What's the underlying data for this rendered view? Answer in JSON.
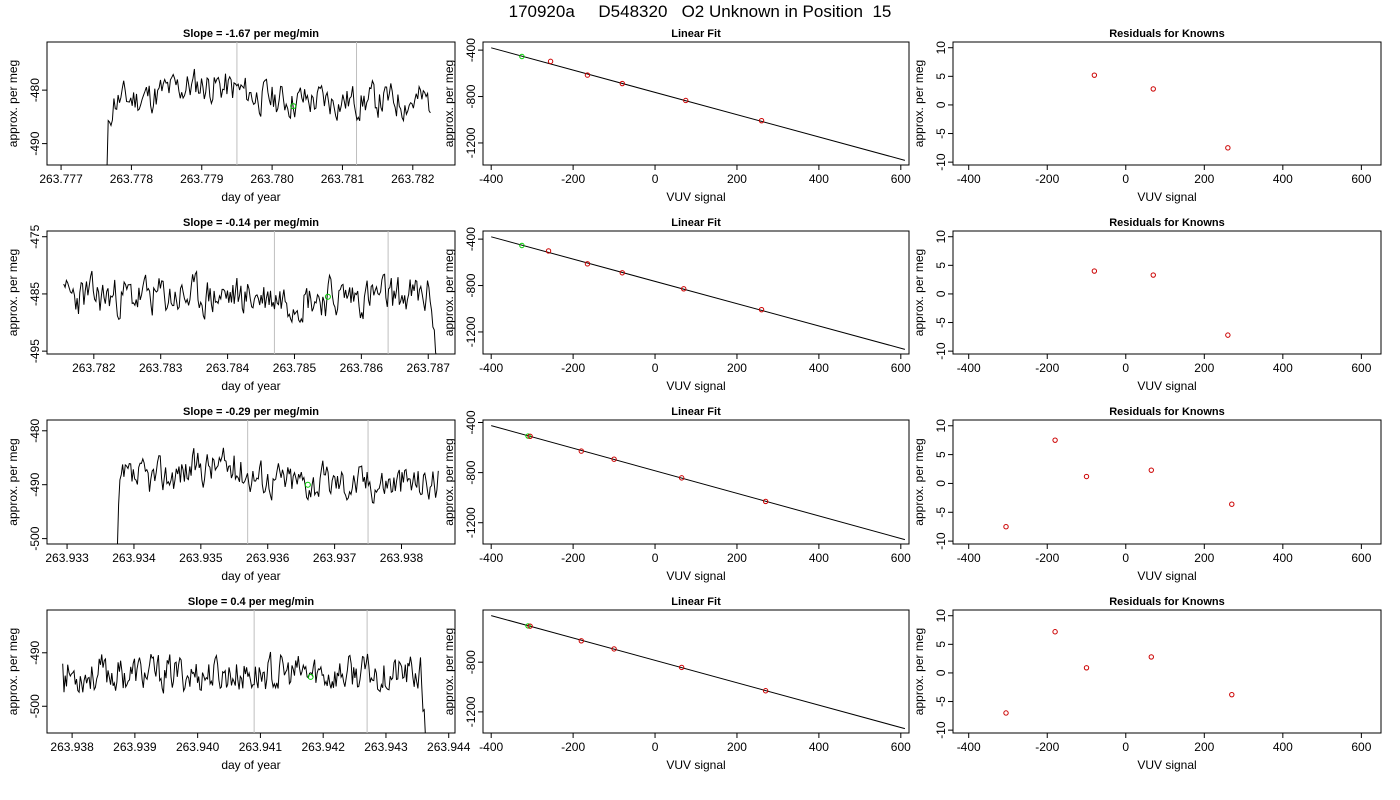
{
  "title": "170920a     D548320   O2 Unknown in Position  15",
  "chart_data": [
    {
      "type": "line",
      "row": 0,
      "col": 0,
      "title": "Slope =  -1.67  per meg/min",
      "xlabel": "day of year",
      "ylabel": "approx. per meg",
      "xlim": [
        263.7768,
        263.7826
      ],
      "ylim": [
        -494,
        -471
      ],
      "xticks": [
        263.777,
        263.778,
        263.779,
        263.78,
        263.781,
        263.782
      ],
      "xtick_labels": [
        "263.777",
        "263.778",
        "263.779",
        "263.780",
        "263.781",
        "263.782"
      ],
      "yticks": [
        -490,
        -480
      ],
      "ytick_labels": [
        "-490",
        "-480"
      ],
      "vlines": [
        263.7795,
        263.7812
      ],
      "series": {
        "x_start": 263.77765,
        "x_end": 263.78225,
        "n": 230,
        "base": -482,
        "start": -497,
        "ramp": 0.6,
        "end_tail": 0,
        "amp": 2.6,
        "seed": 11,
        "bump": 3
      },
      "marker": {
        "x": 263.7803,
        "y": -483,
        "color": "#00cc00"
      }
    },
    {
      "type": "scatter",
      "row": 0,
      "col": 1,
      "title": "Linear Fit",
      "xlabel": "VUV signal",
      "ylabel": "approx. per meg",
      "xlim": [
        -420,
        620
      ],
      "ylim": [
        -1390,
        -330
      ],
      "xticks": [
        -400,
        -200,
        0,
        200,
        400,
        600
      ],
      "xtick_labels": [
        "-400",
        "-200",
        "0",
        "200",
        "400",
        "600"
      ],
      "yticks": [
        -400,
        -800,
        -1200
      ],
      "ytick_labels": [
        "-400",
        "-800",
        "-1200"
      ],
      "line": {
        "x": [
          -400,
          610
        ],
        "y": [
          -380,
          -1350
        ]
      },
      "points": [
        {
          "x": -325,
          "y": -455,
          "color": "#00cc00"
        },
        {
          "x": -255,
          "y": -497,
          "color": "#cc0000"
        },
        {
          "x": -165,
          "y": -615,
          "color": "#cc0000"
        },
        {
          "x": -80,
          "y": -688,
          "color": "#cc0000"
        },
        {
          "x": 75,
          "y": -834,
          "color": "#cc0000"
        },
        {
          "x": 260,
          "y": -1008,
          "color": "#cc0000"
        }
      ]
    },
    {
      "type": "scatter",
      "row": 0,
      "col": 2,
      "title": "Residuals for Knowns",
      "xlabel": "VUV signal",
      "ylabel": "approx. per meg",
      "xlim": [
        -440,
        650
      ],
      "ylim": [
        -10.5,
        11
      ],
      "xticks": [
        -400,
        -200,
        0,
        200,
        400,
        600
      ],
      "xtick_labels": [
        "-400",
        "-200",
        "0",
        "200",
        "400",
        "600"
      ],
      "yticks": [
        -10,
        -5,
        0,
        5,
        10
      ],
      "ytick_labels": [
        "-10",
        "-5",
        "0",
        "5",
        "10"
      ],
      "points": [
        {
          "x": -80,
          "y": 5.2,
          "color": "#cc0000"
        },
        {
          "x": 70,
          "y": 2.8,
          "color": "#cc0000"
        },
        {
          "x": 260,
          "y": -7.5,
          "color": "#cc0000"
        }
      ]
    },
    {
      "type": "line",
      "row": 1,
      "col": 0,
      "title": "Slope =  -0.14  per meg/min",
      "xlabel": "day of year",
      "ylabel": "approx. per meg",
      "xlim": [
        263.7813,
        263.7874
      ],
      "ylim": [
        -495.5,
        -474
      ],
      "xticks": [
        263.782,
        263.783,
        263.784,
        263.785,
        263.786,
        263.787
      ],
      "xtick_labels": [
        "263.782",
        "263.783",
        "263.784",
        "263.785",
        "263.786",
        "263.787"
      ],
      "yticks": [
        -495,
        -485,
        -475
      ],
      "ytick_labels": [
        "-495",
        "-485",
        "-475"
      ],
      "vlines": [
        263.7847,
        263.7864
      ],
      "series": {
        "x_start": 263.78155,
        "x_end": 263.78715,
        "n": 280,
        "base": -485.5,
        "start": -481,
        "ramp": 0.05,
        "end_tail": -14,
        "amp": 2.8,
        "seed": 23,
        "bump": 0
      },
      "marker": {
        "x": 263.7855,
        "y": -485.5,
        "color": "#00cc00"
      }
    },
    {
      "type": "scatter",
      "row": 1,
      "col": 1,
      "title": "Linear Fit",
      "xlabel": "VUV signal",
      "ylabel": "approx. per meg",
      "xlim": [
        -420,
        620
      ],
      "ylim": [
        -1390,
        -330
      ],
      "xticks": [
        -400,
        -200,
        0,
        200,
        400,
        600
      ],
      "xtick_labels": [
        "-400",
        "-200",
        "0",
        "200",
        "400",
        "600"
      ],
      "yticks": [
        -400,
        -800,
        -1200
      ],
      "ytick_labels": [
        "-400",
        "-800",
        "-1200"
      ],
      "line": {
        "x": [
          -400,
          610
        ],
        "y": [
          -380,
          -1350
        ]
      },
      "points": [
        {
          "x": -325,
          "y": -455,
          "color": "#00cc00"
        },
        {
          "x": -260,
          "y": -502,
          "color": "#cc0000"
        },
        {
          "x": -165,
          "y": -613,
          "color": "#cc0000"
        },
        {
          "x": -80,
          "y": -690,
          "color": "#cc0000"
        },
        {
          "x": 70,
          "y": -828,
          "color": "#cc0000"
        },
        {
          "x": 260,
          "y": -1008,
          "color": "#cc0000"
        }
      ]
    },
    {
      "type": "scatter",
      "row": 1,
      "col": 2,
      "title": "Residuals for Knowns",
      "xlabel": "VUV signal",
      "ylabel": "approx. per meg",
      "xlim": [
        -440,
        650
      ],
      "ylim": [
        -10.5,
        11
      ],
      "xticks": [
        -400,
        -200,
        0,
        200,
        400,
        600
      ],
      "xtick_labels": [
        "-400",
        "-200",
        "0",
        "200",
        "400",
        "600"
      ],
      "yticks": [
        -10,
        -5,
        0,
        5,
        10
      ],
      "ytick_labels": [
        "-10",
        "-5",
        "0",
        "5",
        "10"
      ],
      "points": [
        {
          "x": -80,
          "y": 4.0,
          "color": "#cc0000"
        },
        {
          "x": 70,
          "y": 3.3,
          "color": "#cc0000"
        },
        {
          "x": 260,
          "y": -7.2,
          "color": "#cc0000"
        }
      ]
    },
    {
      "type": "line",
      "row": 2,
      "col": 0,
      "title": "Slope =  -0.29  per meg/min",
      "xlabel": "day of year",
      "ylabel": "approx. per meg",
      "xlim": [
        263.9327,
        263.9388
      ],
      "ylim": [
        -501,
        -478
      ],
      "xticks": [
        263.933,
        263.934,
        263.935,
        263.936,
        263.937,
        263.938
      ],
      "xtick_labels": [
        "263.933",
        "263.934",
        "263.935",
        "263.936",
        "263.937",
        "263.938"
      ],
      "yticks": [
        -500,
        -490,
        -480
      ],
      "ytick_labels": [
        "-500",
        "-490",
        "-480"
      ],
      "vlines": [
        263.9357,
        263.9375
      ],
      "series": {
        "x_start": 263.93375,
        "x_end": 263.93855,
        "n": 240,
        "base": -489.5,
        "start": -504,
        "ramp": 0.5,
        "end_tail": 0,
        "amp": 2.7,
        "seed": 37,
        "bump": 3
      },
      "marker": {
        "x": 263.9366,
        "y": -490,
        "color": "#00cc00"
      }
    },
    {
      "type": "scatter",
      "row": 2,
      "col": 1,
      "title": "Linear Fit",
      "xlabel": "VUV signal",
      "ylabel": "approx. per meg",
      "xlim": [
        -420,
        620
      ],
      "ylim": [
        -1370,
        -380
      ],
      "xticks": [
        -400,
        -200,
        0,
        200,
        400,
        600
      ],
      "xtick_labels": [
        "-400",
        "-200",
        "0",
        "200",
        "400",
        "600"
      ],
      "yticks": [
        -400,
        -800,
        -1200
      ],
      "ytick_labels": [
        "-400",
        "-800",
        "-1200"
      ],
      "line": {
        "x": [
          -400,
          610
        ],
        "y": [
          -425,
          -1335
        ]
      },
      "points": [
        {
          "x": -310,
          "y": -508,
          "color": "#00cc00"
        },
        {
          "x": -305,
          "y": -510,
          "color": "#cc0000"
        },
        {
          "x": -180,
          "y": -628,
          "color": "#cc0000"
        },
        {
          "x": -100,
          "y": -693,
          "color": "#cc0000"
        },
        {
          "x": 65,
          "y": -842,
          "color": "#cc0000"
        },
        {
          "x": 270,
          "y": -1030,
          "color": "#cc0000"
        }
      ]
    },
    {
      "type": "scatter",
      "row": 2,
      "col": 2,
      "title": "Residuals for Knowns",
      "xlabel": "VUV signal",
      "ylabel": "approx. per meg",
      "xlim": [
        -440,
        650
      ],
      "ylim": [
        -10.5,
        11
      ],
      "xticks": [
        -400,
        -200,
        0,
        200,
        400,
        600
      ],
      "xtick_labels": [
        "-400",
        "-200",
        "0",
        "200",
        "400",
        "600"
      ],
      "yticks": [
        -10,
        -5,
        0,
        5,
        10
      ],
      "ytick_labels": [
        "-10",
        "-5",
        "0",
        "5",
        "10"
      ],
      "points": [
        {
          "x": -305,
          "y": -7.5,
          "color": "#cc0000"
        },
        {
          "x": -180,
          "y": 7.5,
          "color": "#cc0000"
        },
        {
          "x": -100,
          "y": 1.2,
          "color": "#cc0000"
        },
        {
          "x": 65,
          "y": 2.3,
          "color": "#cc0000"
        },
        {
          "x": 270,
          "y": -3.6,
          "color": "#cc0000"
        }
      ]
    },
    {
      "type": "line",
      "row": 3,
      "col": 0,
      "title": "Slope =  0.4  per meg/min",
      "xlabel": "day of year",
      "ylabel": "approx. per meg",
      "xlim": [
        263.9376,
        263.9441
      ],
      "ylim": [
        -505,
        -482
      ],
      "xticks": [
        263.938,
        263.939,
        263.94,
        263.941,
        263.942,
        263.943,
        263.944
      ],
      "xtick_labels": [
        "263.938",
        "263.939",
        "263.940",
        "263.941",
        "263.942",
        "263.943",
        "263.944"
      ],
      "yticks": [
        -500,
        -490
      ],
      "ytick_labels": [
        "-500",
        "-490"
      ],
      "vlines": [
        263.9409,
        263.9427
      ],
      "series": {
        "x_start": 263.93785,
        "x_end": 263.94365,
        "n": 290,
        "base": -494,
        "start": -491,
        "ramp": 0.05,
        "end_tail": -14,
        "amp": 2.7,
        "seed": 53,
        "bump": 0
      },
      "marker": {
        "x": 263.9418,
        "y": -494.5,
        "color": "#00cc00"
      }
    },
    {
      "type": "scatter",
      "row": 3,
      "col": 1,
      "title": "Linear Fit",
      "xlabel": "VUV signal",
      "ylabel": "approx. per meg",
      "xlim": [
        -420,
        620
      ],
      "ylim": [
        -1370,
        -380
      ],
      "xticks": [
        -400,
        -200,
        0,
        200,
        400,
        600
      ],
      "xtick_labels": [
        "-400",
        "-200",
        "0",
        "200",
        "400",
        "600"
      ],
      "yticks": [
        -800,
        -1200
      ],
      "ytick_labels": [
        "-800",
        "-1200"
      ],
      "line": {
        "x": [
          -400,
          610
        ],
        "y": [
          -425,
          -1335
        ]
      },
      "points": [
        {
          "x": -310,
          "y": -508,
          "color": "#00cc00"
        },
        {
          "x": -305,
          "y": -510,
          "color": "#cc0000"
        },
        {
          "x": -180,
          "y": -628,
          "color": "#cc0000"
        },
        {
          "x": -100,
          "y": -693,
          "color": "#cc0000"
        },
        {
          "x": 65,
          "y": -842,
          "color": "#cc0000"
        },
        {
          "x": 270,
          "y": -1030,
          "color": "#cc0000"
        }
      ]
    },
    {
      "type": "scatter",
      "row": 3,
      "col": 2,
      "title": "Residuals for Knowns",
      "xlabel": "VUV signal",
      "ylabel": "approx. per meg",
      "xlim": [
        -440,
        650
      ],
      "ylim": [
        -10.5,
        11
      ],
      "xticks": [
        -400,
        -200,
        0,
        200,
        400,
        600
      ],
      "xtick_labels": [
        "-400",
        "-200",
        "0",
        "200",
        "400",
        "600"
      ],
      "yticks": [
        -10,
        -5,
        0,
        5,
        10
      ],
      "ytick_labels": [
        "-10",
        "-5",
        "0",
        "5",
        "10"
      ],
      "points": [
        {
          "x": -305,
          "y": -7.0,
          "color": "#cc0000"
        },
        {
          "x": -180,
          "y": 7.2,
          "color": "#cc0000"
        },
        {
          "x": -100,
          "y": 0.9,
          "color": "#cc0000"
        },
        {
          "x": 65,
          "y": 2.8,
          "color": "#cc0000"
        },
        {
          "x": 270,
          "y": -3.8,
          "color": "#cc0000"
        }
      ]
    }
  ]
}
